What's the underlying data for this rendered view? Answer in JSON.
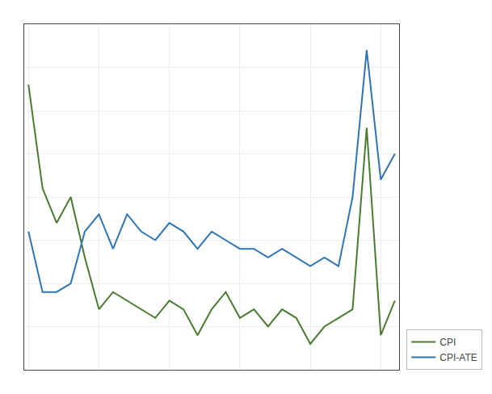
{
  "chart_data": {
    "type": "line",
    "x": [
      0,
      1,
      2,
      3,
      4,
      5,
      6,
      7,
      8,
      9,
      10,
      11,
      12,
      13,
      14,
      15,
      16,
      17,
      18,
      19,
      20,
      21,
      22,
      23,
      24,
      25,
      26
    ],
    "series": [
      {
        "name": "CPI",
        "color": "#4a7c2f",
        "values": [
          4.8,
          3.6,
          3.2,
          3.5,
          2.8,
          2.2,
          2.4,
          2.3,
          2.2,
          2.1,
          2.3,
          2.2,
          1.9,
          2.2,
          2.4,
          2.1,
          2.2,
          2.0,
          2.2,
          2.1,
          1.8,
          2.0,
          2.1,
          2.2,
          4.3,
          1.9,
          2.3
        ]
      },
      {
        "name": "CPI-ATE",
        "color": "#2e75b6",
        "values": [
          3.1,
          2.4,
          2.4,
          2.5,
          3.1,
          3.3,
          2.9,
          3.3,
          3.1,
          3.0,
          3.2,
          3.1,
          2.9,
          3.1,
          3.0,
          2.9,
          2.9,
          2.8,
          2.9,
          2.8,
          2.7,
          2.8,
          2.7,
          3.5,
          5.2,
          3.7,
          4.0
        ]
      }
    ],
    "xlim": [
      -0.3,
      26.3
    ],
    "xticks": [
      0,
      5,
      10,
      15,
      20,
      25
    ],
    "ylim": [
      1.5,
      5.5
    ],
    "yticks": [
      1.5,
      2,
      2.5,
      3,
      3.5,
      4,
      4.5,
      5,
      5.5
    ],
    "grid": true,
    "legend": "lower right",
    "tick_labels": false
  }
}
